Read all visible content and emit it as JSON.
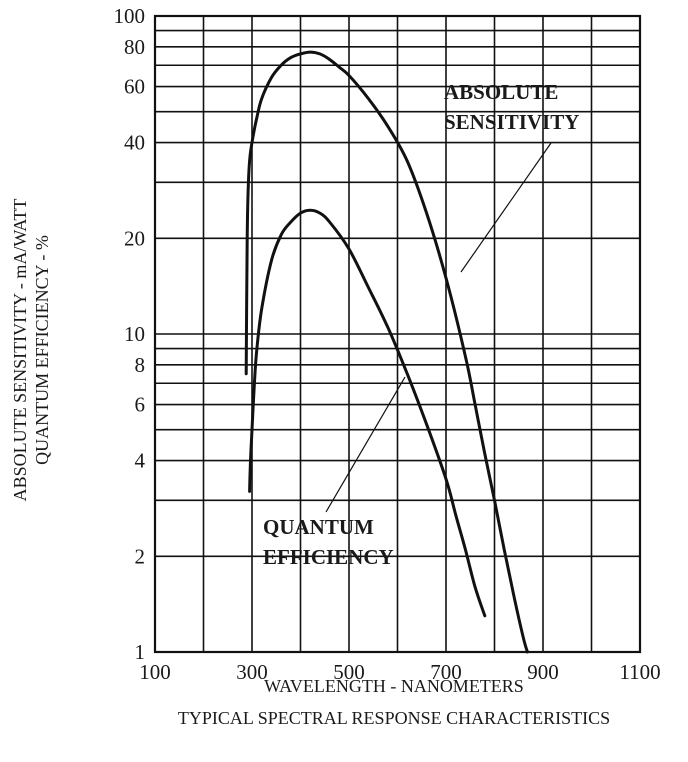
{
  "chart_data": {
    "type": "line",
    "title": "",
    "xlabel": "WAVELENGTH - NANOMETERS",
    "caption": "TYPICAL SPECTRAL RESPONSE CHARACTERISTICS",
    "ylabel_lines": [
      "ABSOLUTE SENSITIVITY - mA/WATT",
      "QUANTUM EFFICIENCY - %"
    ],
    "xlim": [
      100,
      1100
    ],
    "ylim": [
      1,
      100
    ],
    "yscale": "log",
    "grid": true,
    "x_ticks": [
      100,
      300,
      500,
      700,
      900,
      1100
    ],
    "x_tick_labels": [
      "100",
      "300",
      "500",
      "700",
      "900",
      "1100"
    ],
    "y_ticks": [
      1,
      2,
      4,
      6,
      8,
      10,
      20,
      40,
      60,
      80,
      100
    ],
    "y_tick_labels": [
      "1",
      "2",
      "4",
      "6",
      "8",
      "10",
      "20",
      "40",
      "60",
      "80",
      "100"
    ],
    "y_grid": [
      1,
      2,
      3,
      4,
      5,
      6,
      7,
      8,
      9,
      10,
      20,
      30,
      40,
      50,
      60,
      70,
      80,
      90,
      100
    ],
    "x_grid": [
      100,
      200,
      300,
      400,
      500,
      600,
      700,
      800,
      900,
      1000,
      1100
    ],
    "series": [
      {
        "name": "ABSOLUTE SENSITIVITY",
        "x": [
          288,
          289,
          290,
          292,
          295,
          300,
          310,
          320,
          340,
          360,
          380,
          400,
          420,
          440,
          460,
          480,
          500,
          540,
          580,
          620,
          660,
          700,
          740,
          760,
          780,
          800,
          820,
          840,
          860,
          868
        ],
        "y": [
          7.5,
          13,
          20,
          28,
          35,
          40,
          48,
          55,
          64,
          70,
          74,
          76,
          77,
          76,
          73,
          69,
          65,
          55,
          45,
          35,
          24,
          15,
          8.5,
          6,
          4.2,
          3,
          2.1,
          1.5,
          1.1,
          1
        ]
      },
      {
        "name": "QUANTUM EFFICIENCY",
        "x": [
          295,
          297,
          300,
          305,
          310,
          320,
          340,
          360,
          380,
          400,
          420,
          440,
          460,
          500,
          540,
          580,
          620,
          660,
          700,
          720,
          740,
          760,
          780
        ],
        "y": [
          3.2,
          4,
          5,
          7,
          9,
          12,
          17,
          20.5,
          22.5,
          24,
          24.5,
          24,
          22.5,
          18.5,
          14,
          10.5,
          7.5,
          5.2,
          3.5,
          2.7,
          2.1,
          1.6,
          1.3
        ]
      }
    ],
    "annotations": [
      {
        "lines": [
          "ABSOLUTE",
          "SENSITIVITY"
        ],
        "points_to": "ABSOLUTE SENSITIVITY"
      },
      {
        "lines": [
          "QUANTUM",
          "EFFICIENCY"
        ],
        "points_to": "QUANTUM EFFICIENCY"
      }
    ]
  }
}
